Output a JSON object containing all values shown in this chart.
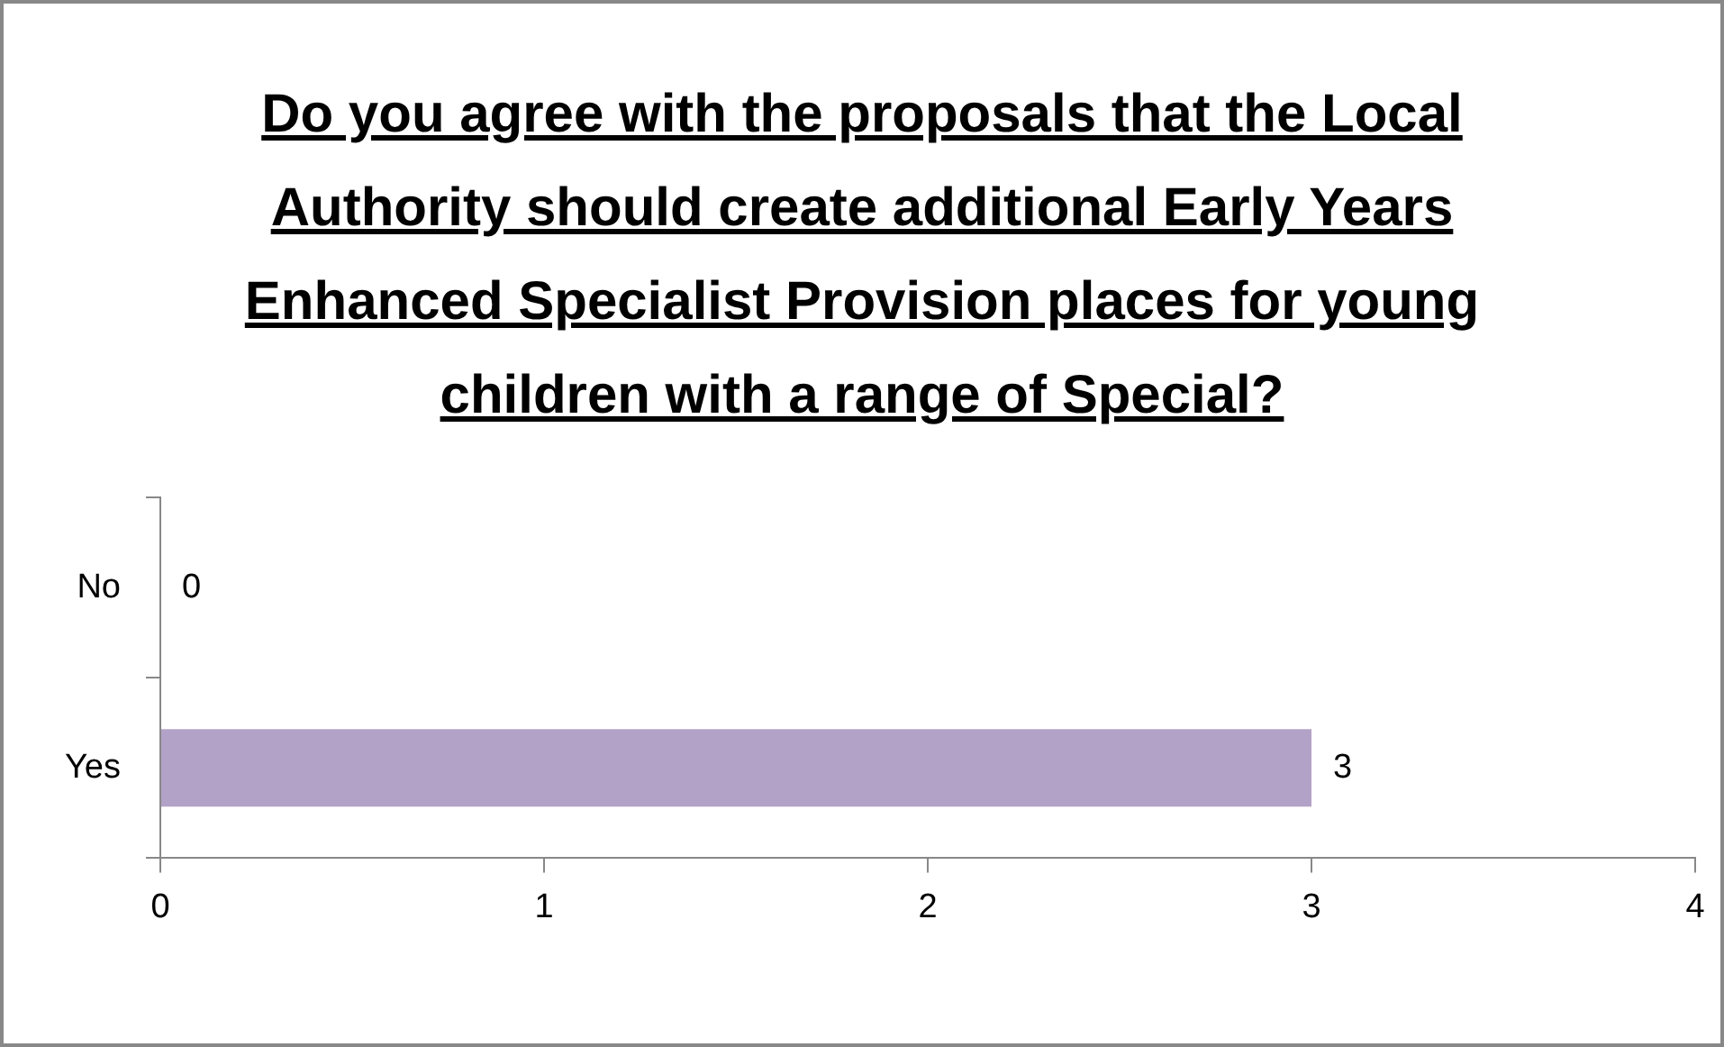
{
  "chart_data": {
    "type": "bar",
    "title": "Do you agree with the proposals that the Local Authority should create additional Early Years Enhanced Specialist Provision places for young children with a range of Special?",
    "orientation": "horizontal",
    "categories": [
      "No",
      "Yes"
    ],
    "values": [
      0,
      3
    ],
    "color": "#b3a2c7",
    "xlim": [
      0,
      4
    ],
    "xticks": [
      0,
      1,
      2,
      3,
      4
    ],
    "data_labels": true
  }
}
